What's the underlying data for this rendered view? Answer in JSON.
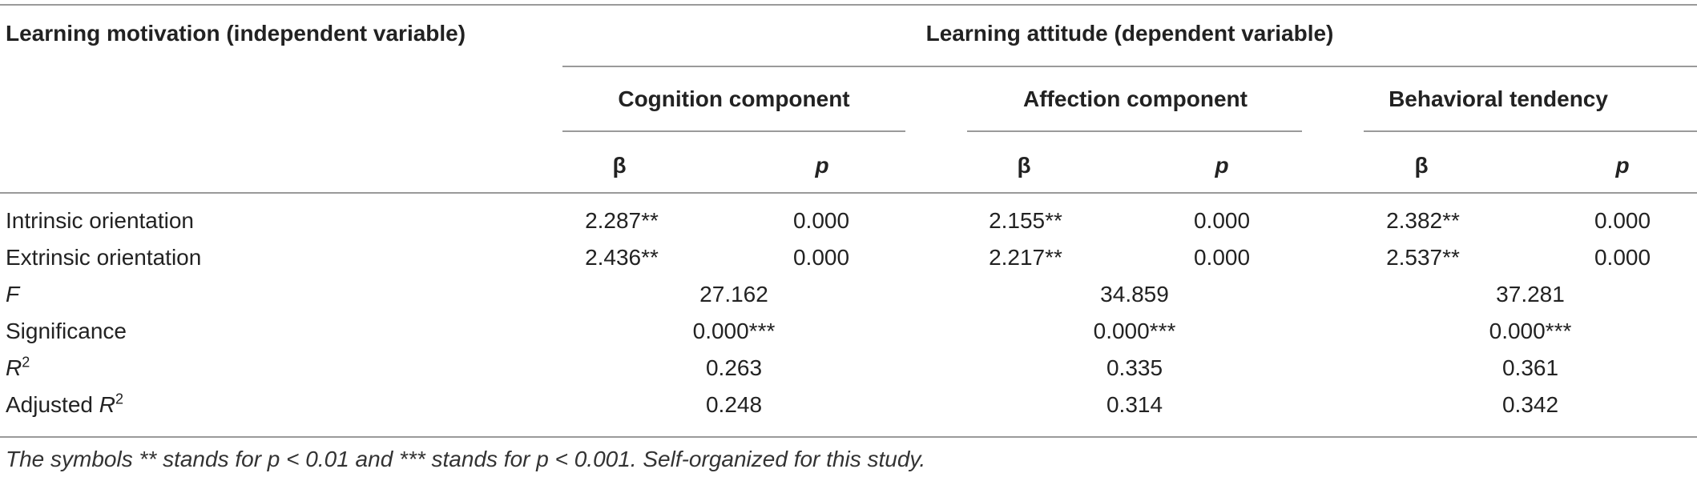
{
  "header": {
    "left_heading": "Learning motivation (independent variable)",
    "right_heading": "Learning attitude (dependent variable)",
    "groups": [
      "Cognition component",
      "Affection component",
      "Behavioral tendency"
    ],
    "beta_symbol": "β",
    "p_symbol": "p"
  },
  "rows": [
    {
      "label": "Intrinsic orientation",
      "cells": [
        "2.287**",
        "0.000",
        "2.155**",
        "0.000",
        "2.382**",
        "0.000"
      ]
    },
    {
      "label": "Extrinsic orientation",
      "cells": [
        "2.436**",
        "0.000",
        "2.217**",
        "0.000",
        "2.537**",
        "0.000"
      ]
    }
  ],
  "summary_rows": [
    {
      "label": "F",
      "values": [
        "27.162",
        "34.859",
        "37.281"
      ]
    },
    {
      "label": "Significance",
      "values": [
        "0.000***",
        "0.000***",
        "0.000***"
      ]
    },
    {
      "label": "R",
      "label_sup": "2",
      "values": [
        "0.263",
        "0.335",
        "0.361"
      ]
    },
    {
      "label_prefix": "Adjusted ",
      "label": "R",
      "label_sup": "2",
      "values": [
        "0.248",
        "0.314",
        "0.342"
      ]
    }
  ],
  "footnote": "The symbols ** stands for p < 0.01 and *** stands for p < 0.001. Self-organized for this study."
}
